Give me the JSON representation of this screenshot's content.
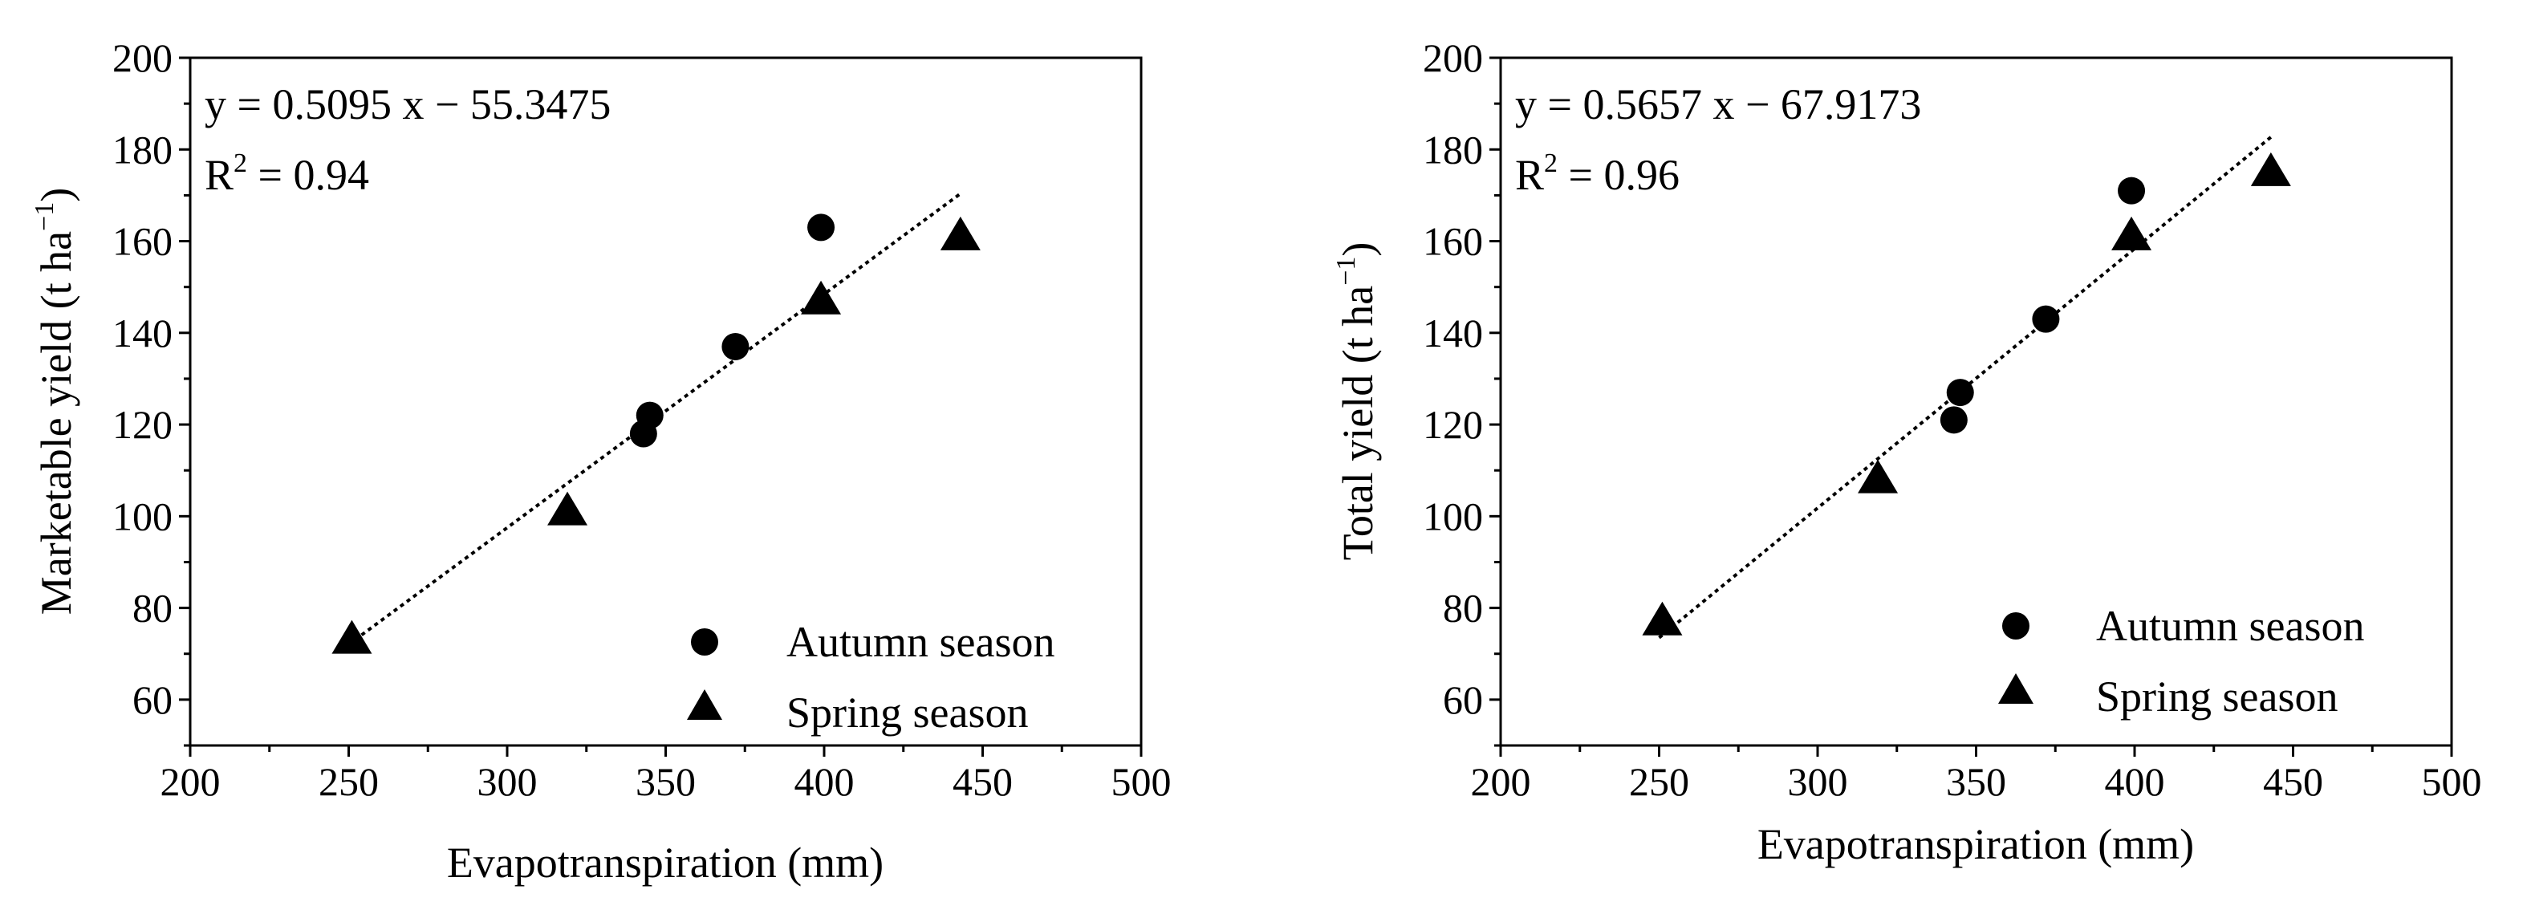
{
  "chart_data": [
    {
      "type": "scatter",
      "xlabel": "Evapotranspiration (mm)",
      "ylabel_main": "Marketable yield (t ha",
      "ylabel_sup": "−1",
      "ylabel_close": ")",
      "xlim": [
        200,
        500
      ],
      "ylim": [
        50,
        200
      ],
      "xticks": [
        200,
        250,
        300,
        350,
        400,
        450,
        500
      ],
      "yticks": [
        60,
        80,
        100,
        120,
        140,
        160,
        180,
        200
      ],
      "equation": "y = 0.5095 x − 55.3475",
      "r2_prefix": "R",
      "r2_sup": "2",
      "r2_value": " = 0.94",
      "fit": {
        "slope": 0.5095,
        "intercept": -55.3475,
        "x_range": [
          250,
          443
        ]
      },
      "legend_position": "bottom-right",
      "series": [
        {
          "name": "Autumn season",
          "marker": "circle",
          "x": [
            343,
            345,
            372,
            399
          ],
          "y": [
            118,
            122,
            137,
            163
          ]
        },
        {
          "name": "Spring season",
          "marker": "triangle",
          "x": [
            251,
            319,
            399,
            443
          ],
          "y": [
            73,
            101,
            147,
            161
          ]
        }
      ]
    },
    {
      "type": "scatter",
      "xlabel": "Evapotranspiration (mm)",
      "ylabel_main": "Total yield (t ha",
      "ylabel_sup": "−1",
      "ylabel_close": ")",
      "xlim": [
        200,
        500
      ],
      "ylim": [
        50,
        200
      ],
      "xticks": [
        200,
        250,
        300,
        350,
        400,
        450,
        500
      ],
      "yticks": [
        60,
        80,
        100,
        120,
        140,
        160,
        180,
        200
      ],
      "equation": "y = 0.5657 x − 67.9173",
      "r2_prefix": "R",
      "r2_sup": "2",
      "r2_value": " = 0.96",
      "fit": {
        "slope": 0.5657,
        "intercept": -67.9173,
        "x_range": [
          250,
          443
        ]
      },
      "legend_position": "bottom-right",
      "series": [
        {
          "name": "Autumn season",
          "marker": "circle",
          "x": [
            343,
            345,
            372,
            399
          ],
          "y": [
            121,
            127,
            143,
            171
          ]
        },
        {
          "name": "Spring season",
          "marker": "triangle",
          "x": [
            251,
            319,
            399,
            443
          ],
          "y": [
            77,
            108,
            161,
            175
          ]
        }
      ]
    }
  ]
}
